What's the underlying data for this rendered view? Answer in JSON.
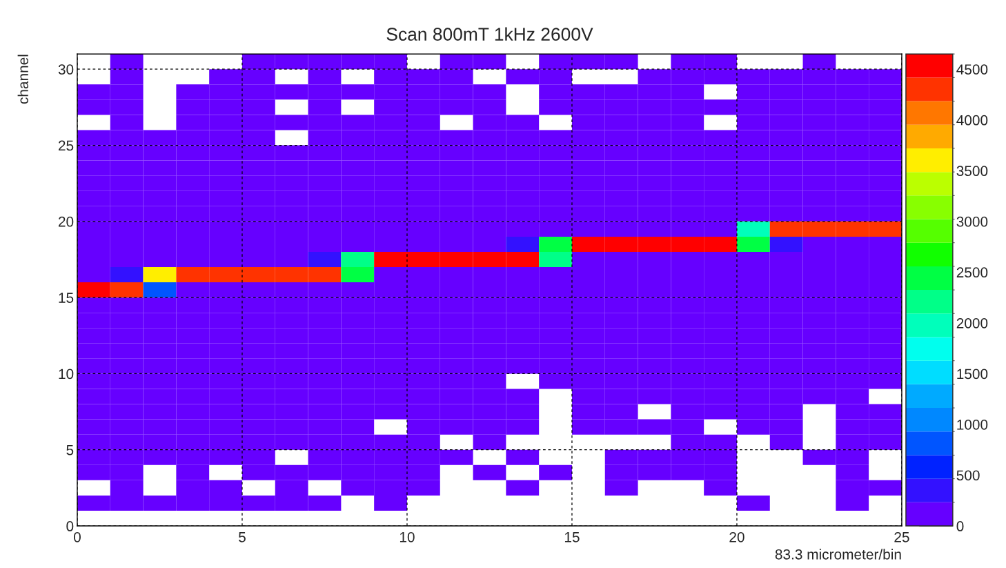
{
  "chart_data": {
    "type": "heatmap",
    "title": "Scan 800mT 1kHz 2600V",
    "xlabel": "83.3 micrometer/bin",
    "ylabel": "channel",
    "x": [
      0.5,
      1.5,
      2.5,
      3.5,
      4.5,
      5.5,
      6.5,
      7.5,
      8.5,
      9.5,
      10.5,
      11.5,
      12.5,
      13.5,
      14.5,
      15.5,
      16.5,
      17.5,
      18.5,
      19.5,
      20.5,
      21.5,
      22.5,
      23.5,
      24.5
    ],
    "y": [
      30.5,
      29.5,
      28.5,
      27.5,
      26.5,
      25.5,
      24.5,
      23.5,
      22.5,
      21.5,
      20.5,
      19.5,
      18.5,
      17.5,
      16.5,
      15.5,
      14.5,
      13.5,
      12.5,
      11.5,
      10.5,
      9.5,
      8.5,
      7.5,
      6.5,
      5.5,
      4.5,
      3.5,
      2.5,
      1.5
    ],
    "xlim": [
      0,
      25
    ],
    "xticks": [
      0,
      5,
      10,
      15,
      20,
      25
    ],
    "ylim": [
      0,
      31
    ],
    "yticks": [
      0,
      5,
      10,
      15,
      20,
      25,
      30
    ],
    "clim": [
      0,
      4650
    ],
    "cticks": [
      0,
      500,
      1000,
      1500,
      2000,
      2500,
      3000,
      3500,
      4000,
      4500
    ],
    "grid": true,
    "line_style": "dashed",
    "cells": [
      [
        null,
        100,
        null,
        null,
        null,
        100,
        100,
        100,
        100,
        100,
        null,
        100,
        100,
        null,
        100,
        100,
        100,
        null,
        100,
        100,
        null,
        null,
        100,
        null,
        null
      ],
      [
        null,
        100,
        null,
        null,
        100,
        100,
        null,
        100,
        null,
        100,
        100,
        100,
        null,
        100,
        100,
        null,
        null,
        100,
        100,
        100,
        100,
        100,
        100,
        100,
        100
      ],
      [
        100,
        100,
        null,
        100,
        100,
        100,
        100,
        100,
        100,
        100,
        100,
        100,
        100,
        null,
        100,
        100,
        100,
        100,
        100,
        null,
        100,
        100,
        100,
        100,
        100
      ],
      [
        100,
        100,
        null,
        100,
        100,
        100,
        null,
        100,
        null,
        100,
        100,
        100,
        100,
        null,
        100,
        100,
        100,
        100,
        100,
        100,
        100,
        100,
        100,
        100,
        100
      ],
      [
        null,
        100,
        null,
        100,
        100,
        100,
        100,
        100,
        100,
        100,
        100,
        null,
        100,
        100,
        null,
        100,
        100,
        100,
        100,
        null,
        100,
        100,
        100,
        100,
        100
      ],
      [
        100,
        100,
        100,
        100,
        100,
        100,
        null,
        100,
        100,
        100,
        100,
        100,
        100,
        100,
        100,
        100,
        100,
        100,
        100,
        100,
        100,
        100,
        100,
        100,
        100
      ],
      [
        100,
        100,
        100,
        100,
        100,
        100,
        100,
        100,
        100,
        100,
        100,
        100,
        100,
        100,
        100,
        100,
        100,
        100,
        100,
        100,
        100,
        100,
        100,
        100,
        100
      ],
      [
        100,
        100,
        100,
        100,
        100,
        100,
        100,
        100,
        100,
        100,
        100,
        100,
        100,
        100,
        100,
        100,
        100,
        100,
        100,
        100,
        100,
        100,
        100,
        100,
        100
      ],
      [
        100,
        100,
        100,
        100,
        100,
        100,
        100,
        100,
        100,
        100,
        100,
        100,
        100,
        100,
        100,
        100,
        100,
        100,
        100,
        100,
        100,
        100,
        100,
        100,
        100
      ],
      [
        100,
        100,
        100,
        100,
        100,
        100,
        100,
        100,
        100,
        100,
        100,
        100,
        100,
        100,
        100,
        100,
        100,
        100,
        100,
        100,
        100,
        100,
        100,
        100,
        100
      ],
      [
        100,
        100,
        100,
        100,
        100,
        100,
        100,
        100,
        100,
        100,
        100,
        100,
        100,
        100,
        100,
        100,
        100,
        100,
        100,
        100,
        100,
        100,
        100,
        100,
        100
      ],
      [
        100,
        100,
        100,
        100,
        100,
        100,
        100,
        100,
        100,
        100,
        100,
        100,
        100,
        100,
        100,
        100,
        100,
        100,
        100,
        100,
        1950,
        4300,
        4300,
        4300,
        4300
      ],
      [
        100,
        100,
        100,
        100,
        100,
        100,
        100,
        100,
        100,
        100,
        100,
        100,
        100,
        350,
        2450,
        4500,
        4500,
        4500,
        4500,
        4500,
        2450,
        350,
        100,
        100,
        100
      ],
      [
        100,
        100,
        100,
        100,
        100,
        100,
        100,
        350,
        2100,
        4500,
        4500,
        4500,
        4500,
        4500,
        2100,
        100,
        100,
        100,
        100,
        100,
        100,
        100,
        100,
        100,
        100
      ],
      [
        100,
        350,
        3600,
        4300,
        4300,
        4300,
        4300,
        4300,
        2450,
        100,
        100,
        100,
        100,
        100,
        100,
        100,
        100,
        100,
        100,
        100,
        100,
        100,
        100,
        100,
        100
      ],
      [
        4500,
        4300,
        800,
        100,
        100,
        100,
        100,
        100,
        100,
        100,
        100,
        100,
        100,
        100,
        100,
        100,
        100,
        100,
        100,
        100,
        100,
        100,
        100,
        100,
        100
      ],
      [
        100,
        100,
        100,
        100,
        100,
        100,
        100,
        100,
        100,
        100,
        100,
        100,
        100,
        100,
        100,
        100,
        100,
        100,
        100,
        100,
        100,
        100,
        100,
        100,
        100
      ],
      [
        100,
        100,
        100,
        100,
        100,
        100,
        100,
        100,
        100,
        100,
        100,
        100,
        100,
        100,
        100,
        100,
        100,
        100,
        100,
        100,
        100,
        100,
        100,
        100,
        100
      ],
      [
        100,
        100,
        100,
        100,
        100,
        100,
        100,
        100,
        100,
        100,
        100,
        100,
        100,
        100,
        100,
        100,
        100,
        100,
        100,
        100,
        100,
        100,
        100,
        100,
        100
      ],
      [
        100,
        100,
        100,
        100,
        100,
        100,
        100,
        100,
        100,
        100,
        100,
        100,
        100,
        100,
        100,
        100,
        100,
        100,
        100,
        100,
        100,
        100,
        100,
        100,
        100
      ],
      [
        100,
        100,
        100,
        100,
        100,
        100,
        100,
        100,
        100,
        100,
        100,
        100,
        100,
        100,
        100,
        100,
        100,
        100,
        100,
        100,
        100,
        100,
        100,
        100,
        100
      ],
      [
        100,
        100,
        100,
        100,
        100,
        100,
        100,
        100,
        100,
        100,
        100,
        100,
        100,
        null,
        100,
        100,
        100,
        100,
        100,
        100,
        100,
        100,
        100,
        100,
        100
      ],
      [
        100,
        100,
        100,
        100,
        100,
        100,
        100,
        100,
        100,
        100,
        100,
        100,
        100,
        100,
        null,
        100,
        100,
        100,
        100,
        100,
        100,
        100,
        100,
        100,
        null
      ],
      [
        100,
        100,
        100,
        100,
        100,
        100,
        100,
        100,
        100,
        100,
        100,
        100,
        100,
        100,
        null,
        100,
        100,
        null,
        100,
        100,
        100,
        100,
        null,
        100,
        100
      ],
      [
        100,
        100,
        100,
        100,
        100,
        100,
        100,
        100,
        100,
        null,
        100,
        100,
        100,
        100,
        null,
        100,
        100,
        100,
        100,
        null,
        100,
        100,
        null,
        100,
        100
      ],
      [
        100,
        100,
        100,
        100,
        100,
        100,
        100,
        100,
        100,
        100,
        100,
        null,
        100,
        null,
        null,
        null,
        null,
        null,
        100,
        100,
        null,
        100,
        null,
        100,
        100
      ],
      [
        100,
        100,
        100,
        100,
        100,
        100,
        null,
        100,
        100,
        100,
        100,
        100,
        null,
        100,
        null,
        null,
        100,
        100,
        100,
        100,
        null,
        null,
        100,
        100,
        null
      ],
      [
        100,
        100,
        null,
        100,
        null,
        100,
        100,
        100,
        100,
        100,
        100,
        null,
        100,
        null,
        100,
        null,
        100,
        100,
        100,
        100,
        null,
        null,
        null,
        100,
        null
      ],
      [
        null,
        100,
        null,
        100,
        100,
        null,
        100,
        null,
        100,
        100,
        100,
        null,
        null,
        100,
        null,
        null,
        100,
        null,
        null,
        100,
        null,
        null,
        null,
        100,
        100
      ],
      [
        100,
        100,
        100,
        100,
        100,
        100,
        100,
        100,
        null,
        100,
        null,
        null,
        null,
        null,
        null,
        null,
        null,
        null,
        null,
        null,
        100,
        null,
        null,
        100,
        null
      ]
    ]
  }
}
